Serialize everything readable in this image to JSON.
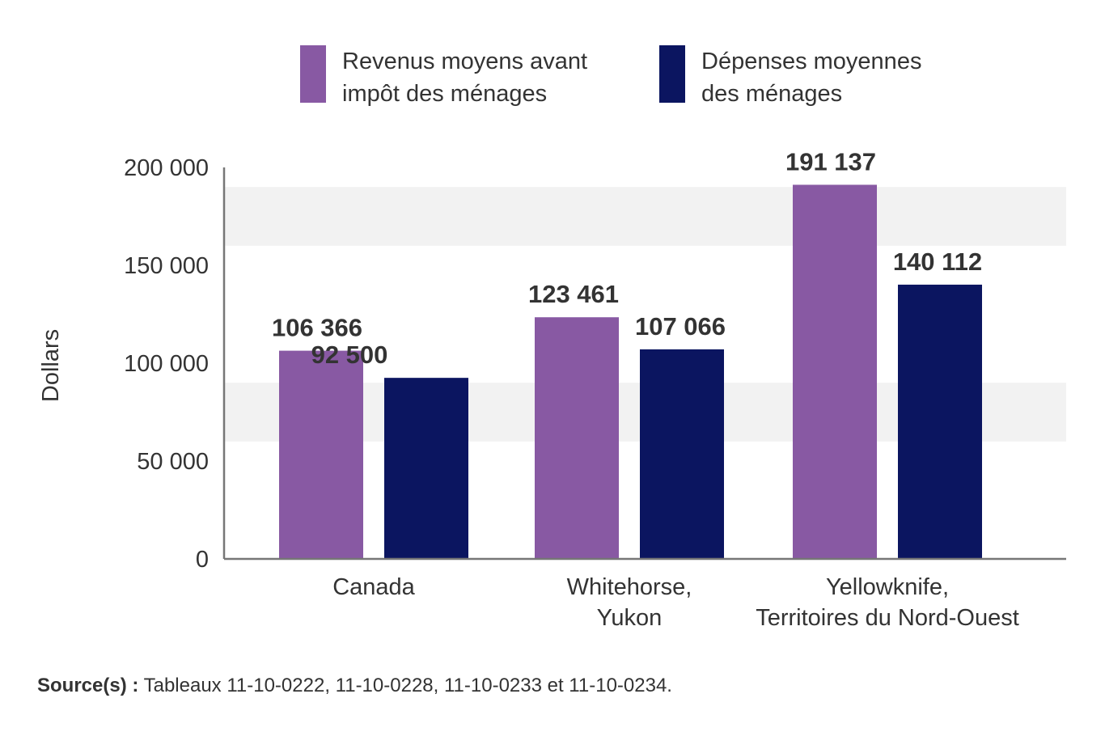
{
  "chart_data": {
    "type": "bar",
    "categories": [
      [
        "Canada"
      ],
      [
        "Whitehorse,",
        "Yukon"
      ],
      [
        "Yellowknife,",
        "Territoires du Nord-Ouest"
      ]
    ],
    "series": [
      {
        "name": "Revenus moyens avant impôt des ménages",
        "legend_lines": [
          "Revenus moyens avant",
          "impôt des ménages"
        ],
        "color": "#8859a3",
        "values": [
          106366,
          123461,
          191137
        ],
        "labels": [
          "106 366",
          "123 461",
          "191 137"
        ]
      },
      {
        "name": "Dépenses moyennes des ménages",
        "legend_lines": [
          "Dépenses moyennes",
          "des ménages"
        ],
        "color": "#0b1560",
        "values": [
          92500,
          107066,
          140112
        ],
        "labels": [
          "92 500",
          "107 066",
          "140 112"
        ]
      }
    ],
    "ylabel": "Dollars",
    "xlabel": "",
    "ylim": [
      0,
      200000
    ],
    "yticks": [
      0,
      50000,
      100000,
      150000,
      200000
    ],
    "ytick_labels": [
      "0",
      "50 000",
      "100 000",
      "150 000",
      "200 000"
    ],
    "grid": "alternating bands",
    "band_color": "#f2f2f2",
    "legend_position": "top"
  },
  "source": {
    "label": "Source(s) :",
    "text": "Tableaux 11-10-0222, 11-10-0228, 11-10-0233 et 11-10-0234."
  }
}
